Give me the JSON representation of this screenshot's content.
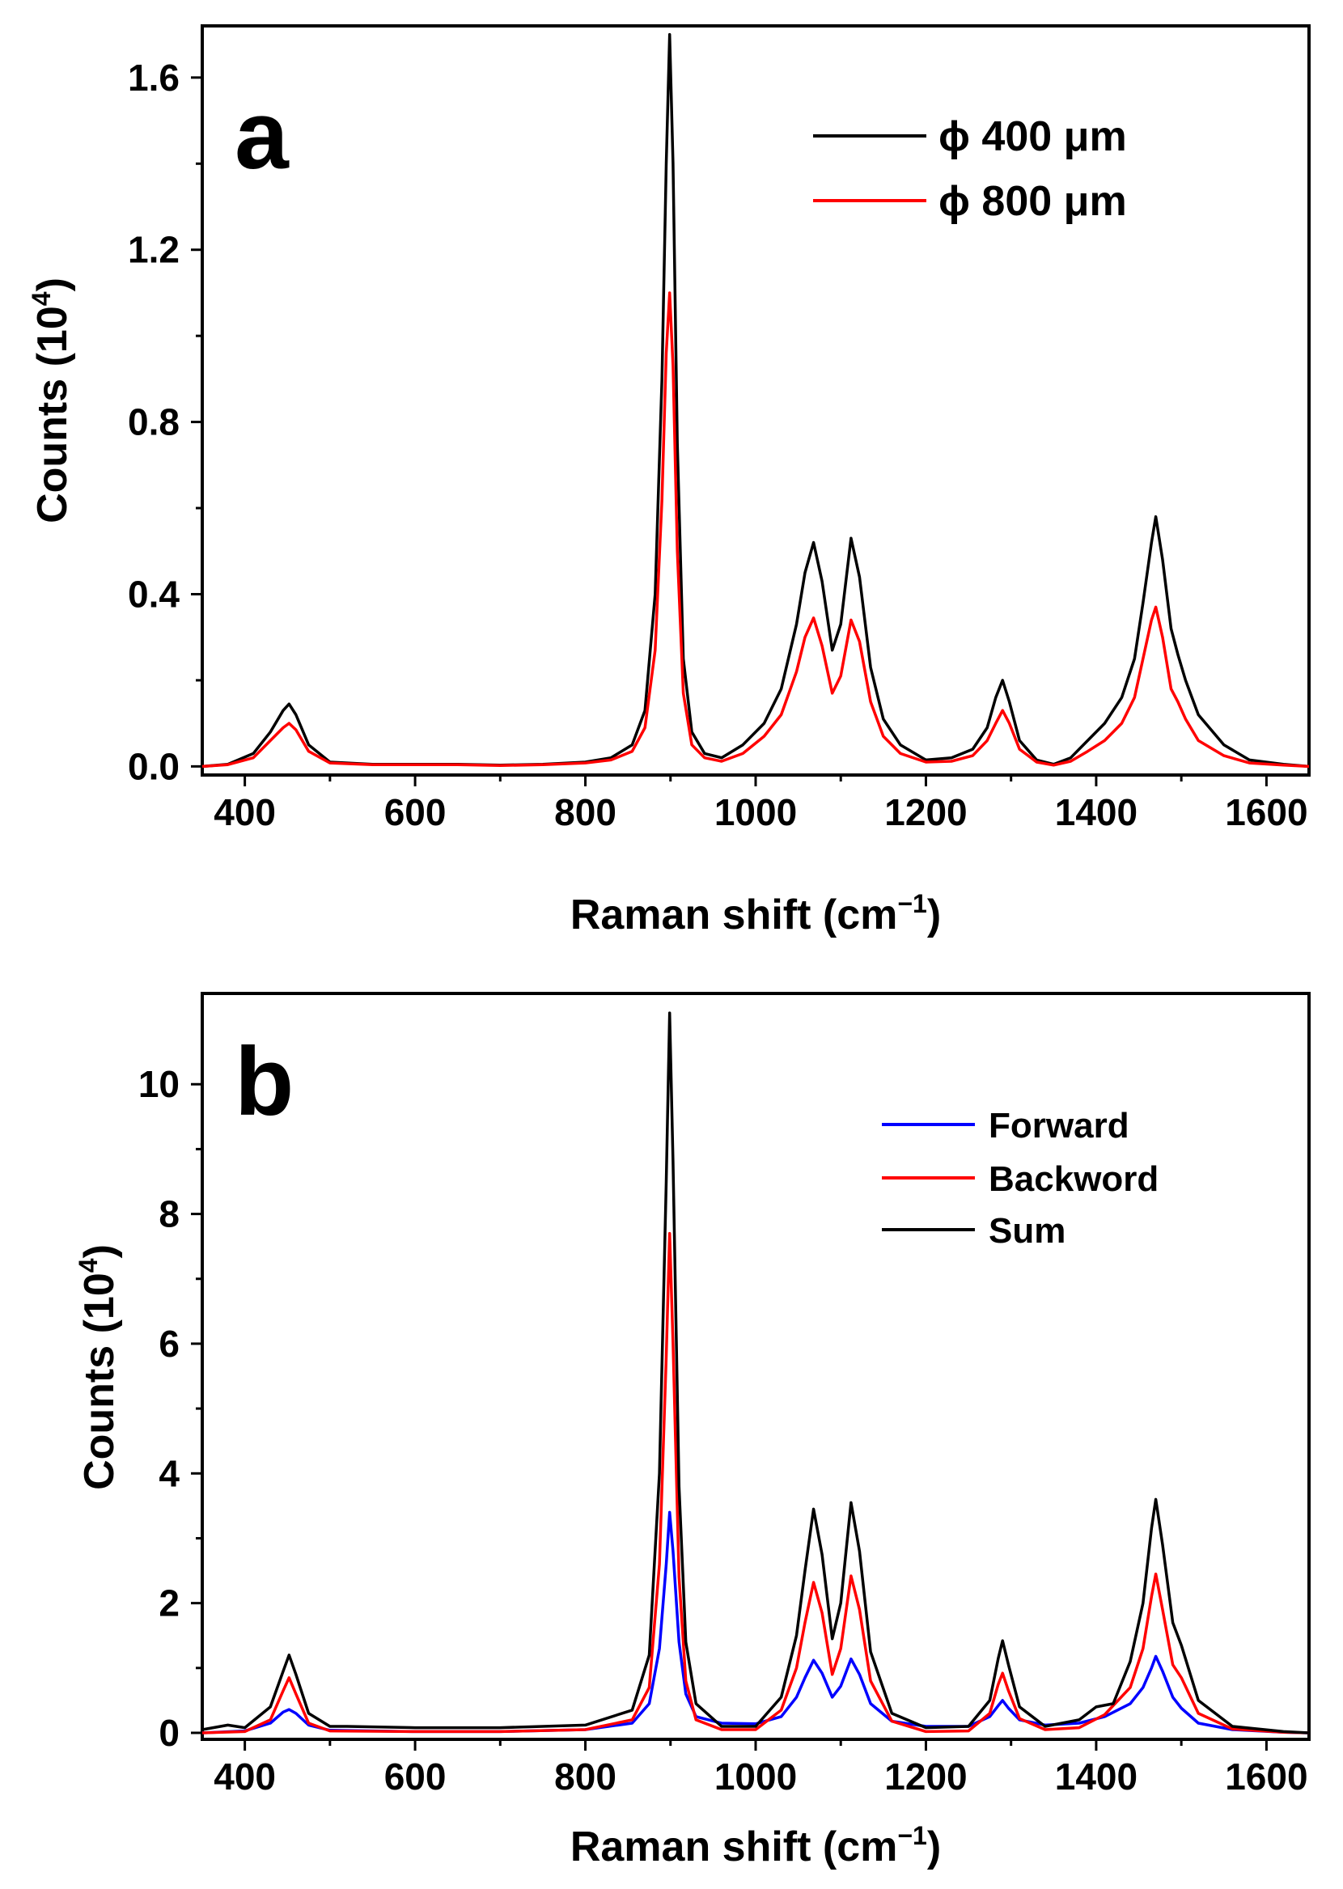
{
  "chart_data": [
    {
      "type": "line",
      "panel_label": "a",
      "xlabel": "Raman shift (cm",
      "xlabel_sup": "−1",
      "xlabel_close": ")",
      "ylabel": "Counts (10",
      "ylabel_sup": "4",
      "ylabel_close": ")",
      "xlim": [
        350,
        1650
      ],
      "ylim": [
        -0.02,
        1.72
      ],
      "xticks": [
        400,
        600,
        800,
        1000,
        1200,
        1400,
        1600
      ],
      "xtick_labels": [
        "400",
        "600",
        "800",
        "1000",
        "1200",
        "1400",
        "1600"
      ],
      "yticks": [
        0.0,
        0.4,
        0.8,
        1.2,
        1.6
      ],
      "ytick_labels": [
        "0.0",
        "0.4",
        "0.8",
        "1.2",
        "1.6"
      ],
      "legend_position": "top-right",
      "series": [
        {
          "name": "ϕ 400 μm",
          "color": "#000000",
          "x": [
            350,
            380,
            410,
            430,
            445,
            452,
            460,
            475,
            500,
            550,
            600,
            650,
            700,
            750,
            800,
            830,
            855,
            870,
            882,
            890,
            895,
            899,
            903,
            908,
            915,
            925,
            940,
            960,
            985,
            1010,
            1030,
            1048,
            1058,
            1068,
            1078,
            1090,
            1100,
            1112,
            1122,
            1135,
            1150,
            1170,
            1200,
            1230,
            1255,
            1272,
            1282,
            1290,
            1298,
            1310,
            1330,
            1350,
            1370,
            1390,
            1410,
            1430,
            1445,
            1455,
            1465,
            1470,
            1478,
            1488,
            1496,
            1505,
            1520,
            1550,
            1580,
            1620,
            1650
          ],
          "y": [
            0.0,
            0.005,
            0.03,
            0.08,
            0.13,
            0.145,
            0.12,
            0.05,
            0.01,
            0.005,
            0.005,
            0.005,
            0.003,
            0.005,
            0.01,
            0.02,
            0.05,
            0.13,
            0.4,
            0.9,
            1.4,
            1.7,
            1.4,
            0.75,
            0.25,
            0.08,
            0.03,
            0.02,
            0.05,
            0.1,
            0.18,
            0.33,
            0.45,
            0.52,
            0.43,
            0.27,
            0.33,
            0.53,
            0.44,
            0.23,
            0.11,
            0.05,
            0.015,
            0.02,
            0.04,
            0.09,
            0.16,
            0.2,
            0.15,
            0.06,
            0.015,
            0.005,
            0.02,
            0.06,
            0.1,
            0.16,
            0.25,
            0.38,
            0.52,
            0.58,
            0.48,
            0.32,
            0.26,
            0.2,
            0.12,
            0.05,
            0.015,
            0.005,
            0.0
          ]
        },
        {
          "name": "ϕ 800 μm",
          "color": "#ff0000",
          "x": [
            350,
            380,
            410,
            430,
            445,
            452,
            460,
            475,
            500,
            550,
            600,
            650,
            700,
            750,
            800,
            830,
            855,
            870,
            882,
            890,
            895,
            899,
            903,
            908,
            915,
            925,
            940,
            960,
            985,
            1010,
            1030,
            1048,
            1058,
            1068,
            1078,
            1090,
            1100,
            1112,
            1122,
            1135,
            1150,
            1170,
            1200,
            1230,
            1255,
            1272,
            1282,
            1290,
            1298,
            1310,
            1330,
            1350,
            1370,
            1390,
            1410,
            1430,
            1445,
            1455,
            1465,
            1470,
            1478,
            1488,
            1496,
            1505,
            1520,
            1550,
            1580,
            1620,
            1650
          ],
          "y": [
            0.0,
            0.004,
            0.02,
            0.06,
            0.09,
            0.1,
            0.085,
            0.035,
            0.008,
            0.004,
            0.004,
            0.004,
            0.002,
            0.004,
            0.008,
            0.015,
            0.035,
            0.09,
            0.27,
            0.62,
            0.96,
            1.1,
            0.93,
            0.5,
            0.17,
            0.05,
            0.02,
            0.012,
            0.03,
            0.07,
            0.12,
            0.22,
            0.3,
            0.345,
            0.28,
            0.17,
            0.21,
            0.34,
            0.29,
            0.15,
            0.07,
            0.03,
            0.01,
            0.012,
            0.025,
            0.06,
            0.1,
            0.13,
            0.1,
            0.04,
            0.01,
            0.003,
            0.012,
            0.035,
            0.06,
            0.1,
            0.16,
            0.25,
            0.34,
            0.37,
            0.3,
            0.18,
            0.15,
            0.11,
            0.06,
            0.025,
            0.008,
            0.003,
            0.0
          ]
        }
      ]
    },
    {
      "type": "line",
      "panel_label": "b",
      "xlabel": "Raman shift (cm",
      "xlabel_sup": "−1",
      "xlabel_close": ")",
      "ylabel": "Counts (10",
      "ylabel_sup": "4",
      "ylabel_close": ")",
      "xlim": [
        350,
        1650
      ],
      "ylim": [
        -0.1,
        11.4
      ],
      "xticks": [
        400,
        600,
        800,
        1000,
        1200,
        1400,
        1600
      ],
      "xtick_labels": [
        "400",
        "600",
        "800",
        "1000",
        "1200",
        "1400",
        "1600"
      ],
      "yticks": [
        0,
        2,
        4,
        6,
        8,
        10
      ],
      "ytick_labels": [
        "0",
        "2",
        "4",
        "6",
        "8",
        "10"
      ],
      "legend_position": "top-right",
      "series": [
        {
          "name": "Forward",
          "color": "#0000ff",
          "x": [
            350,
            400,
            430,
            445,
            452,
            460,
            475,
            500,
            600,
            700,
            800,
            855,
            875,
            887,
            895,
            899,
            903,
            910,
            918,
            930,
            960,
            1000,
            1030,
            1048,
            1058,
            1068,
            1078,
            1090,
            1100,
            1112,
            1122,
            1135,
            1160,
            1200,
            1250,
            1275,
            1285,
            1290,
            1297,
            1310,
            1340,
            1380,
            1410,
            1440,
            1455,
            1465,
            1470,
            1478,
            1490,
            1500,
            1520,
            1560,
            1620,
            1650
          ],
          "y": [
            0.0,
            0.03,
            0.15,
            0.32,
            0.36,
            0.3,
            0.12,
            0.04,
            0.02,
            0.02,
            0.05,
            0.15,
            0.45,
            1.3,
            2.6,
            3.4,
            2.8,
            1.4,
            0.6,
            0.25,
            0.15,
            0.14,
            0.25,
            0.55,
            0.85,
            1.12,
            0.92,
            0.55,
            0.72,
            1.14,
            0.9,
            0.45,
            0.18,
            0.1,
            0.1,
            0.25,
            0.42,
            0.5,
            0.38,
            0.2,
            0.12,
            0.15,
            0.25,
            0.45,
            0.7,
            1.0,
            1.18,
            0.95,
            0.55,
            0.38,
            0.15,
            0.05,
            0.01,
            0.0
          ]
        },
        {
          "name": "Backword",
          "color": "#ff0000",
          "x": [
            350,
            400,
            430,
            445,
            452,
            460,
            475,
            500,
            600,
            700,
            800,
            855,
            875,
            887,
            895,
            899,
            903,
            910,
            918,
            930,
            960,
            1000,
            1030,
            1048,
            1058,
            1068,
            1078,
            1090,
            1100,
            1112,
            1122,
            1135,
            1160,
            1200,
            1250,
            1275,
            1285,
            1290,
            1297,
            1310,
            1340,
            1380,
            1410,
            1440,
            1455,
            1465,
            1470,
            1478,
            1490,
            1500,
            1520,
            1560,
            1620,
            1650
          ],
          "y": [
            0.0,
            0.02,
            0.2,
            0.65,
            0.85,
            0.6,
            0.15,
            0.03,
            0.02,
            0.02,
            0.05,
            0.2,
            0.7,
            2.6,
            5.8,
            7.7,
            6.0,
            2.4,
            0.8,
            0.2,
            0.05,
            0.05,
            0.35,
            1.0,
            1.7,
            2.32,
            1.85,
            0.9,
            1.3,
            2.42,
            1.9,
            0.8,
            0.18,
            0.02,
            0.03,
            0.3,
            0.75,
            0.92,
            0.65,
            0.22,
            0.05,
            0.08,
            0.28,
            0.7,
            1.3,
            2.1,
            2.45,
            1.9,
            1.05,
            0.85,
            0.3,
            0.06,
            0.01,
            0.0
          ]
        },
        {
          "name": "Sum",
          "color": "#000000",
          "x": [
            350,
            380,
            400,
            430,
            445,
            452,
            460,
            475,
            500,
            520,
            600,
            700,
            800,
            855,
            875,
            887,
            895,
            899,
            903,
            910,
            918,
            930,
            960,
            1000,
            1030,
            1048,
            1058,
            1068,
            1078,
            1090,
            1100,
            1112,
            1122,
            1135,
            1160,
            1200,
            1250,
            1275,
            1285,
            1290,
            1297,
            1310,
            1340,
            1380,
            1400,
            1420,
            1440,
            1455,
            1465,
            1470,
            1478,
            1490,
            1500,
            1520,
            1560,
            1620,
            1650
          ],
          "y": [
            0.05,
            0.12,
            0.08,
            0.4,
            0.95,
            1.2,
            0.9,
            0.3,
            0.1,
            0.1,
            0.08,
            0.08,
            0.12,
            0.35,
            1.2,
            4.0,
            8.5,
            11.1,
            8.8,
            3.8,
            1.4,
            0.45,
            0.1,
            0.1,
            0.55,
            1.5,
            2.5,
            3.45,
            2.75,
            1.45,
            2.0,
            3.55,
            2.8,
            1.25,
            0.3,
            0.08,
            0.1,
            0.5,
            1.15,
            1.42,
            1.05,
            0.4,
            0.1,
            0.2,
            0.4,
            0.45,
            1.1,
            2.0,
            3.15,
            3.6,
            2.9,
            1.7,
            1.35,
            0.5,
            0.1,
            0.02,
            0.0
          ]
        }
      ]
    }
  ]
}
